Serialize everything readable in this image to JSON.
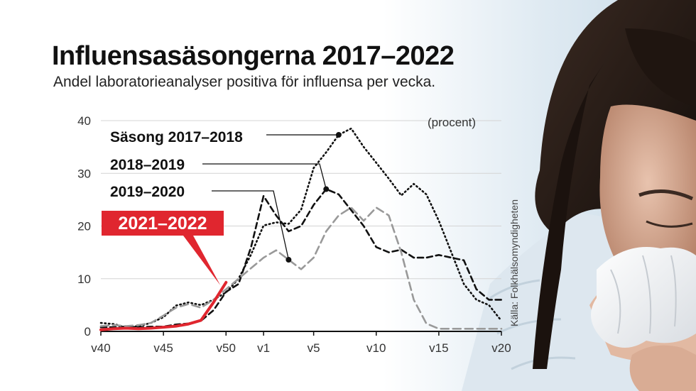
{
  "title": "Influensasäsongerna 2017–2022",
  "subtitle": "Andel laboratorieanalyser positiva för influensa per vecka.",
  "source": "Källa: Folkhälsomyndigheten",
  "photo_icon": "woman-sneezing-into-tissue",
  "chart_data": {
    "type": "line",
    "title": "Influensasäsongerna 2017–2022",
    "ylabel": "(procent)",
    "ylim": [
      0,
      40
    ],
    "yticks": [
      0,
      10,
      20,
      30,
      40
    ],
    "xticks": [
      {
        "label": "v40",
        "index": 0
      },
      {
        "label": "v45",
        "index": 5
      },
      {
        "label": "v50",
        "index": 10
      },
      {
        "label": "v1",
        "index": 13
      },
      {
        "label": "v5",
        "index": 17
      },
      {
        "label": "v10",
        "index": 22
      },
      {
        "label": "v15",
        "index": 27
      },
      {
        "label": "v20",
        "index": 32
      }
    ],
    "grid": true,
    "series": [
      {
        "name": "Säsong 2017–2018",
        "style": "dotted",
        "color": "#111111",
        "values": [
          1.6,
          1.4,
          0.8,
          1.0,
          1.6,
          2.7,
          4.9,
          5.5,
          5.0,
          6.0,
          7.4,
          10.0,
          14.6,
          20.1,
          20.7,
          20.4,
          23.1,
          31.0,
          34.0,
          37.3,
          38.5,
          35.0,
          32.0,
          29.0,
          25.8,
          28.0,
          26.0,
          21.0,
          15.0,
          9.0,
          6.0,
          5.0,
          2.0
        ]
      },
      {
        "name": "2018–2019",
        "style": "dashed",
        "color": "#111111",
        "values": [
          0.8,
          0.8,
          0.9,
          0.8,
          0.9,
          0.9,
          1.3,
          1.5,
          2.0,
          4.0,
          7.5,
          9.0,
          16.0,
          25.7,
          22.0,
          19.0,
          20.0,
          24.0,
          27.0,
          26.0,
          23.0,
          20.0,
          16.0,
          15.0,
          15.5,
          14.0,
          14.0,
          14.5,
          14.0,
          13.5,
          8.0,
          6.0,
          6.0
        ]
      },
      {
        "name": "2019–2020",
        "style": "dashed",
        "color": "#999999",
        "values": [
          1.0,
          1.2,
          1.0,
          1.2,
          1.6,
          3.0,
          4.5,
          5.2,
          4.5,
          6.0,
          8.0,
          10.0,
          12.0,
          14.0,
          15.4,
          13.6,
          11.8,
          14.0,
          19.0,
          22.0,
          23.5,
          21.0,
          23.5,
          22.0,
          15.0,
          6.0,
          1.5,
          0.5,
          0.5,
          0.5,
          0.5,
          0.5,
          0.5
        ]
      },
      {
        "name": "2021–2022",
        "style": "solid",
        "color": "#e0262f",
        "highlight": true,
        "values": [
          0.3,
          0.5,
          0.6,
          0.5,
          0.6,
          0.8,
          1.0,
          1.4,
          2.1,
          5.5,
          9.3
        ]
      }
    ]
  }
}
